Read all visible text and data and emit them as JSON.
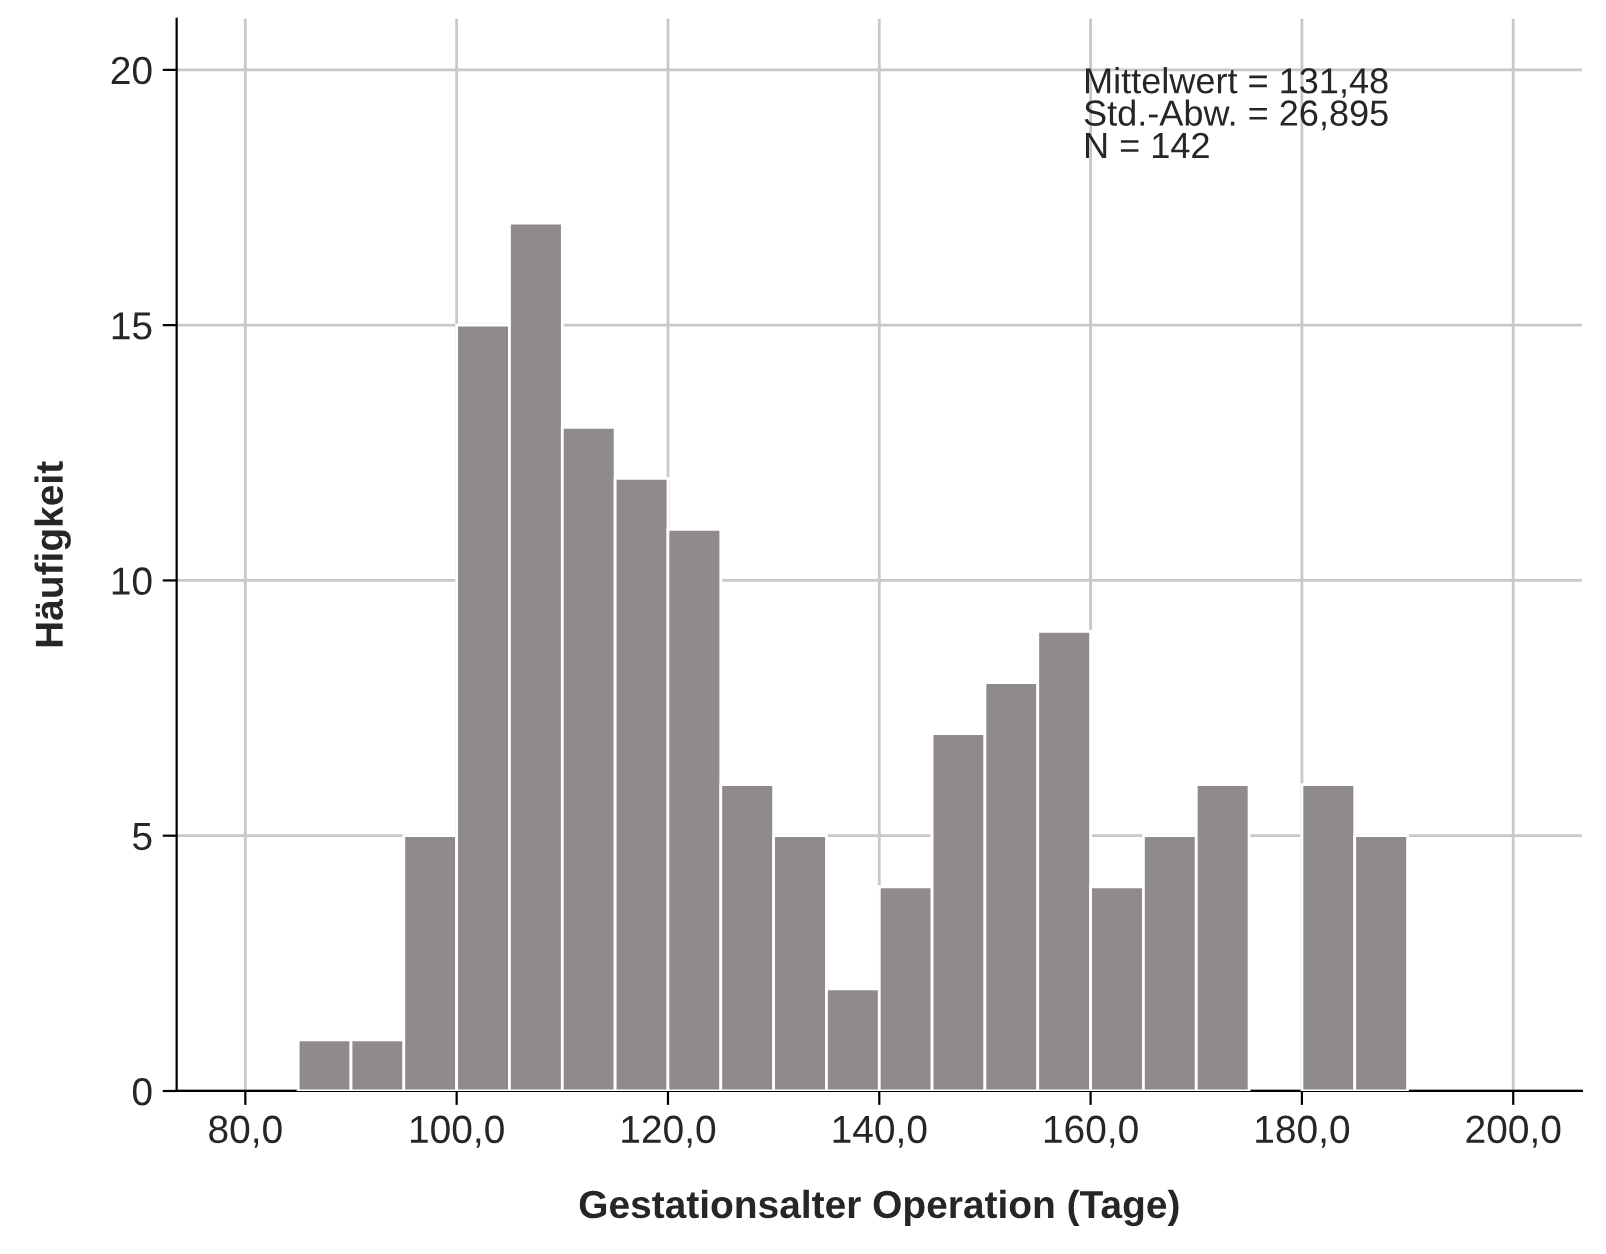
{
  "chart_data": {
    "type": "histogram",
    "xlabel": "Gestationsalter Operation (Tage)",
    "ylabel": "Häufigkeit",
    "bins": [
      85,
      90,
      95,
      100,
      105,
      110,
      115,
      120,
      125,
      130,
      135,
      140,
      145,
      150,
      155,
      160,
      165,
      170,
      175,
      180,
      185,
      190
    ],
    "values": [
      1,
      1,
      5,
      15,
      17,
      13,
      12,
      11,
      6,
      5,
      2,
      4,
      7,
      8,
      9,
      4,
      5,
      6,
      0,
      6,
      5
    ],
    "color": "#8f8b8a",
    "xlim": [
      73.5,
      206.5
    ],
    "ylim": [
      0,
      21
    ],
    "xticks": [
      {
        "value": 80,
        "label": "80,0"
      },
      {
        "value": 100,
        "label": "100,0"
      },
      {
        "value": 120,
        "label": "120,0"
      },
      {
        "value": 140,
        "label": "140,0"
      },
      {
        "value": 160,
        "label": "160,0"
      },
      {
        "value": 180,
        "label": "180,0"
      },
      {
        "value": 200,
        "label": "200,0"
      }
    ],
    "yticks": [
      0,
      5,
      10,
      15,
      20
    ],
    "grid": true,
    "annotations": [
      "Mittelwert = 131,48\nStd.-Abw. = 26,895\nN = 142"
    ]
  }
}
